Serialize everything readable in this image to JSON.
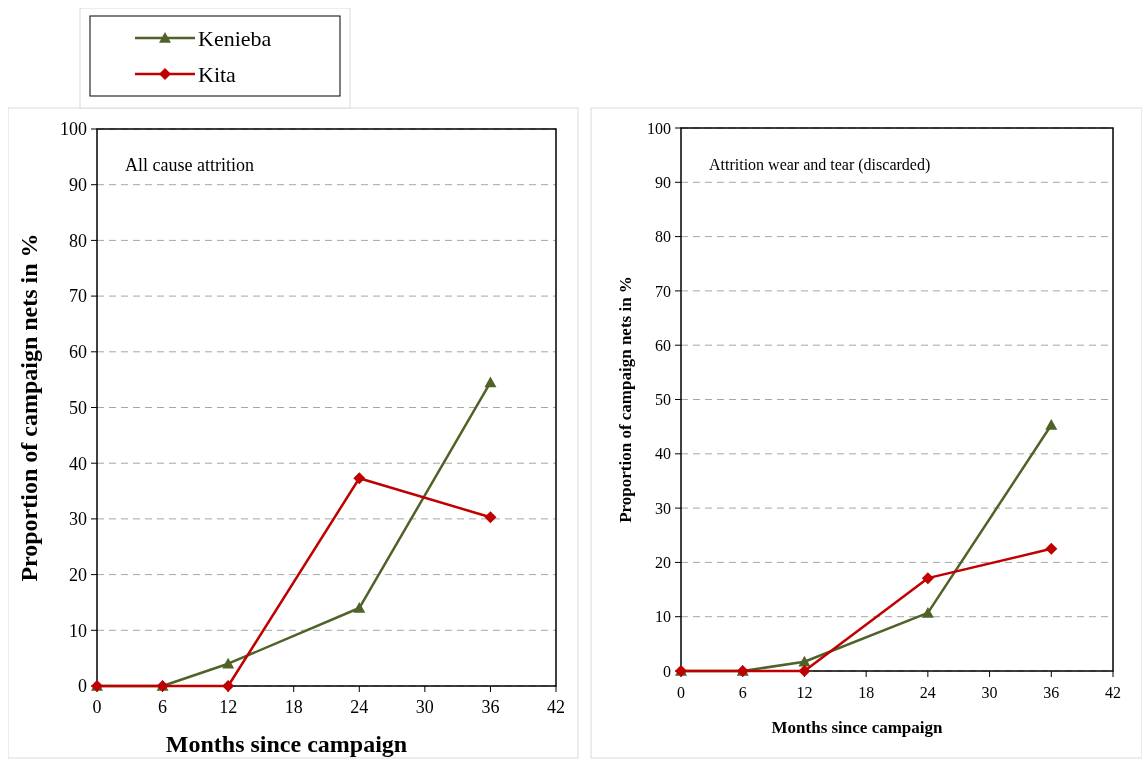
{
  "chart_data": [
    {
      "type": "line",
      "title": "All cause attrition",
      "xlabel": "Months since campaign",
      "ylabel": "Proportion of campaign nets in %",
      "x": [
        0,
        6,
        12,
        24,
        36
      ],
      "xlim": [
        0,
        42
      ],
      "xticks": [
        0,
        6,
        12,
        18,
        24,
        30,
        36,
        42
      ],
      "ylim": [
        0,
        100
      ],
      "yticks": [
        0,
        10,
        20,
        30,
        40,
        50,
        60,
        70,
        80,
        90,
        100
      ],
      "grid": "y",
      "legend": "top left",
      "series": [
        {
          "name": "Kenieba",
          "color": "#4f6228",
          "marker": "triangle",
          "values": [
            0,
            0,
            4,
            14,
            54.5
          ]
        },
        {
          "name": "Kita",
          "color": "#c00000",
          "marker": "diamond",
          "values": [
            0,
            0,
            0,
            37.3,
            30.3
          ]
        }
      ]
    },
    {
      "type": "line",
      "title": "Attrition wear and tear (discarded)",
      "xlabel": "Months since campaign",
      "ylabel": "Proportion of campaign nets in %",
      "x": [
        0,
        6,
        12,
        24,
        36
      ],
      "xlim": [
        0,
        42
      ],
      "xticks": [
        0,
        6,
        12,
        18,
        24,
        30,
        36,
        42
      ],
      "ylim": [
        0,
        100
      ],
      "yticks": [
        0,
        10,
        20,
        30,
        40,
        50,
        60,
        70,
        80,
        90,
        100
      ],
      "grid": "y",
      "series": [
        {
          "color": "#4f6228",
          "marker": "triangle",
          "values": [
            0,
            0,
            1.7,
            10.7,
            45.3
          ]
        },
        {
          "color": "#c00000",
          "marker": "diamond",
          "values": [
            0,
            0,
            0,
            17.1,
            22.5
          ]
        }
      ]
    }
  ]
}
